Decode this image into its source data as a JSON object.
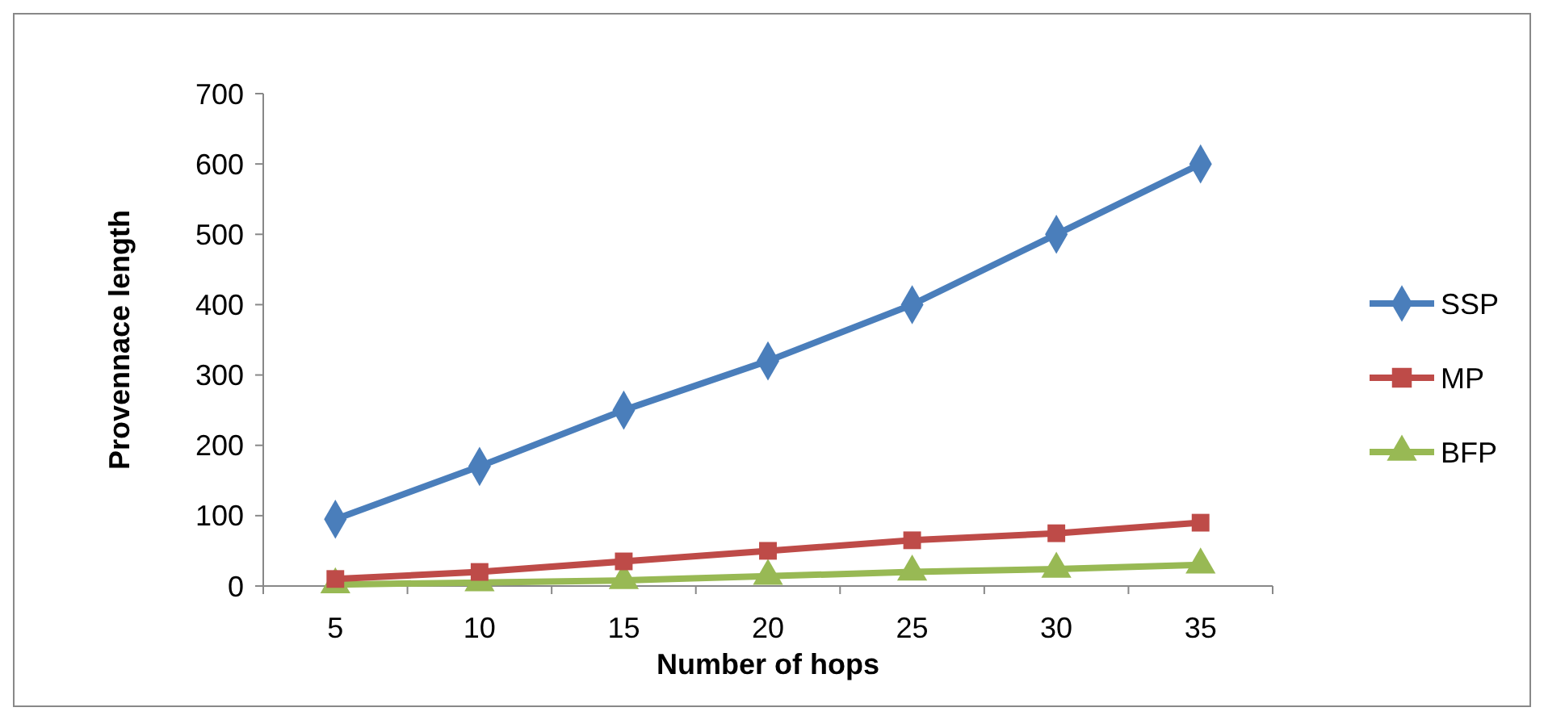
{
  "chart_data": {
    "type": "line",
    "xlabel": "Number of hops",
    "ylabel": "Provennace length",
    "categories": [
      "5",
      "10",
      "15",
      "20",
      "25",
      "30",
      "35"
    ],
    "ylim": [
      0,
      700
    ],
    "yticks": [
      0,
      100,
      200,
      300,
      400,
      500,
      600,
      700
    ],
    "grid": false,
    "legend": "right",
    "line_style": "solid",
    "series": [
      {
        "name": "SSP",
        "color": "#4a7ebb",
        "marker": "diamond",
        "values": [
          95,
          170,
          250,
          320,
          400,
          500,
          600
        ]
      },
      {
        "name": "MP",
        "color": "#be4b48",
        "marker": "square",
        "values": [
          10,
          20,
          35,
          50,
          65,
          75,
          90
        ]
      },
      {
        "name": "BFP",
        "color": "#98b954",
        "marker": "triangle",
        "values": [
          2,
          5,
          8,
          14,
          20,
          24,
          30
        ]
      }
    ]
  }
}
